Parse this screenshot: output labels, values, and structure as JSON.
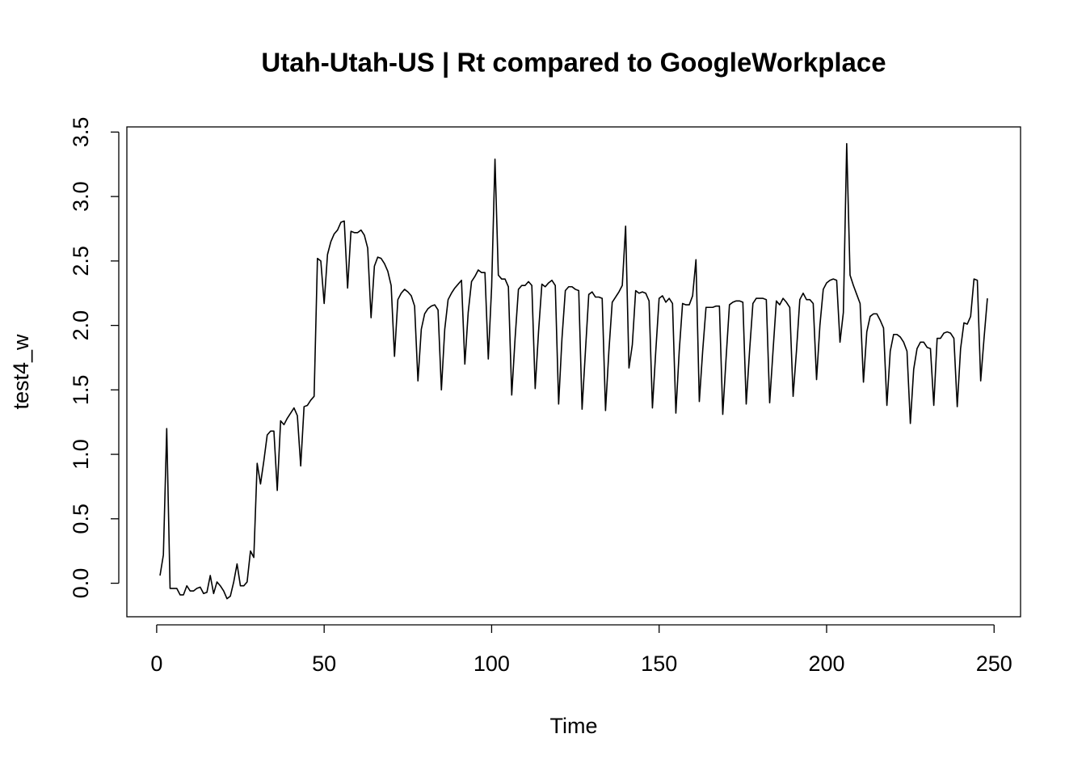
{
  "chart_data": {
    "type": "line",
    "title": "Utah-Utah-US | Rt compared to GoogleWorkplace",
    "x_label": "Time",
    "y_label": "test4_w",
    "x": [
      1,
      2,
      3,
      4,
      5,
      6,
      7,
      8,
      9,
      10,
      11,
      12,
      13,
      14,
      15,
      16,
      17,
      18,
      19,
      20,
      21,
      22,
      23,
      24,
      25,
      26,
      27,
      28,
      29,
      30,
      31,
      32,
      33,
      34,
      35,
      36,
      37,
      38,
      39,
      40,
      41,
      42,
      43,
      44,
      45,
      46,
      47,
      48,
      49,
      50,
      51,
      52,
      53,
      54,
      55,
      56,
      57,
      58,
      59,
      60,
      61,
      62,
      63,
      64,
      65,
      66,
      67,
      68,
      69,
      70,
      71,
      72,
      73,
      74,
      75,
      76,
      77,
      78,
      79,
      80,
      81,
      82,
      83,
      84,
      85,
      86,
      87,
      88,
      89,
      90,
      91,
      92,
      93,
      94,
      95,
      96,
      97,
      98,
      99,
      100,
      101,
      102,
      103,
      104,
      105,
      106,
      107,
      108,
      109,
      110,
      111,
      112,
      113,
      114,
      115,
      116,
      117,
      118,
      119,
      120,
      121,
      122,
      123,
      124,
      125,
      126,
      127,
      128,
      129,
      130,
      131,
      132,
      133,
      134,
      135,
      136,
      137,
      138,
      139,
      140,
      141,
      142,
      143,
      144,
      145,
      146,
      147,
      148,
      149,
      150,
      151,
      152,
      153,
      154,
      155,
      156,
      157,
      158,
      159,
      160,
      161,
      162,
      163,
      164,
      165,
      166,
      167,
      168,
      169,
      170,
      171,
      172,
      173,
      174,
      175,
      176,
      177,
      178,
      179,
      180,
      181,
      182,
      183,
      184,
      185,
      186,
      187,
      188,
      189,
      190,
      191,
      192,
      193,
      194,
      195,
      196,
      197,
      198,
      199,
      200,
      201,
      202,
      203,
      204,
      205,
      206,
      207,
      208,
      209,
      210,
      211,
      212,
      213,
      214,
      215,
      216,
      217,
      218,
      219,
      220,
      221,
      222,
      223,
      224,
      225,
      226,
      227,
      228,
      229,
      230,
      231,
      232,
      233,
      234,
      235,
      236,
      237,
      238,
      239,
      240,
      241,
      242,
      243,
      244,
      245,
      246,
      247,
      248
    ],
    "series": [
      {
        "name": "test4_w",
        "color": "#000000",
        "values": [
          0.06,
          0.22,
          1.2,
          -0.04,
          -0.04,
          -0.04,
          -0.09,
          -0.09,
          -0.02,
          -0.06,
          -0.06,
          -0.04,
          -0.03,
          -0.08,
          -0.07,
          0.06,
          -0.08,
          0.01,
          -0.02,
          -0.06,
          -0.12,
          -0.1,
          0.01,
          0.15,
          -0.02,
          -0.02,
          0.01,
          0.25,
          0.2,
          0.93,
          0.77,
          0.95,
          1.15,
          1.18,
          1.18,
          0.72,
          1.26,
          1.23,
          1.28,
          1.32,
          1.36,
          1.3,
          0.91,
          1.37,
          1.38,
          1.42,
          1.45,
          2.52,
          2.5,
          2.17,
          2.55,
          2.65,
          2.71,
          2.74,
          2.8,
          2.81,
          2.29,
          2.73,
          2.72,
          2.72,
          2.74,
          2.7,
          2.6,
          2.06,
          2.46,
          2.53,
          2.52,
          2.48,
          2.42,
          2.31,
          1.76,
          2.2,
          2.25,
          2.28,
          2.26,
          2.23,
          2.15,
          1.57,
          1.97,
          2.09,
          2.13,
          2.15,
          2.16,
          2.12,
          1.5,
          1.97,
          2.2,
          2.25,
          2.29,
          2.32,
          2.35,
          1.7,
          2.1,
          2.34,
          2.38,
          2.43,
          2.41,
          2.41,
          1.74,
          2.3,
          3.29,
          2.39,
          2.36,
          2.36,
          2.3,
          1.46,
          1.9,
          2.28,
          2.31,
          2.31,
          2.34,
          2.31,
          1.51,
          1.95,
          2.32,
          2.3,
          2.33,
          2.35,
          2.31,
          1.39,
          1.9,
          2.27,
          2.3,
          2.3,
          2.28,
          2.27,
          1.35,
          1.8,
          2.24,
          2.26,
          2.22,
          2.22,
          2.21,
          1.34,
          1.8,
          2.18,
          2.22,
          2.26,
          2.31,
          2.77,
          1.67,
          1.85,
          2.27,
          2.25,
          2.26,
          2.25,
          2.19,
          1.36,
          1.8,
          2.21,
          2.23,
          2.18,
          2.21,
          2.17,
          1.32,
          1.8,
          2.17,
          2.16,
          2.16,
          2.23,
          2.51,
          1.41,
          1.8,
          2.14,
          2.14,
          2.14,
          2.15,
          2.15,
          1.31,
          1.75,
          2.16,
          2.18,
          2.19,
          2.19,
          2.18,
          1.39,
          1.8,
          2.17,
          2.21,
          2.21,
          2.21,
          2.2,
          1.4,
          1.8,
          2.19,
          2.16,
          2.21,
          2.18,
          2.14,
          1.45,
          1.8,
          2.2,
          2.25,
          2.2,
          2.2,
          2.17,
          1.58,
          2.0,
          2.28,
          2.33,
          2.35,
          2.36,
          2.35,
          1.87,
          2.1,
          3.41,
          2.39,
          2.31,
          2.24,
          2.17,
          1.56,
          1.95,
          2.07,
          2.09,
          2.09,
          2.04,
          1.98,
          1.38,
          1.8,
          1.93,
          1.93,
          1.91,
          1.87,
          1.8,
          1.24,
          1.66,
          1.82,
          1.87,
          1.87,
          1.83,
          1.82,
          1.38,
          1.9,
          1.9,
          1.94,
          1.95,
          1.94,
          1.9,
          1.37,
          1.82,
          2.02,
          2.01,
          2.07,
          2.36,
          2.35,
          1.57,
          1.9,
          2.21
        ]
      }
    ],
    "xlim": [
      -8.9,
      257.9
    ],
    "ylim": [
      -0.26,
      3.54
    ],
    "xticks": [
      0,
      50,
      100,
      150,
      200,
      250
    ],
    "yticks": [
      {
        "value": 0,
        "label": "0.0"
      },
      0.5,
      {
        "value": 1,
        "label": "1.0"
      },
      1.5,
      {
        "value": 2,
        "label": "2.0"
      },
      2.5,
      {
        "value": 3,
        "label": "3.0"
      },
      3.5
    ]
  }
}
